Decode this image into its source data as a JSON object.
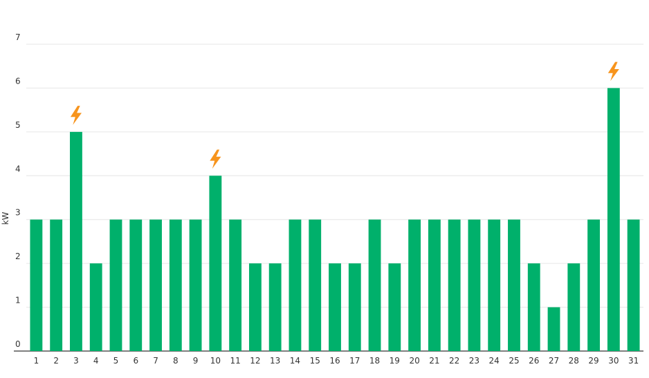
{
  "chart_data": {
    "type": "bar",
    "title": "",
    "xlabel": "",
    "ylabel": "kW",
    "ylim": [
      0,
      7
    ],
    "yticks": [
      0,
      1,
      2,
      3,
      4,
      5,
      6,
      7
    ],
    "grid": true,
    "legend": "none",
    "categories": [
      "1",
      "2",
      "3",
      "4",
      "5",
      "6",
      "7",
      "8",
      "9",
      "10",
      "11",
      "12",
      "13",
      "14",
      "15",
      "16",
      "17",
      "18",
      "19",
      "20",
      "21",
      "22",
      "23",
      "24",
      "25",
      "26",
      "27",
      "28",
      "29",
      "30",
      "31"
    ],
    "values": [
      3,
      3,
      5,
      2,
      3,
      3,
      3,
      3,
      3,
      4,
      3,
      2,
      2,
      3,
      3,
      2,
      2,
      3,
      2,
      3,
      3,
      3,
      3,
      3,
      3,
      2,
      1,
      2,
      3,
      6,
      3
    ],
    "peak_markers": [
      "3",
      "10",
      "30"
    ],
    "peak_marker_icon": "lightning-bolt-icon",
    "colors": {
      "bar": "#00b06b",
      "peak_marker": "#f7941d",
      "grid": "#e6e6e6",
      "axis": "#333333"
    }
  }
}
